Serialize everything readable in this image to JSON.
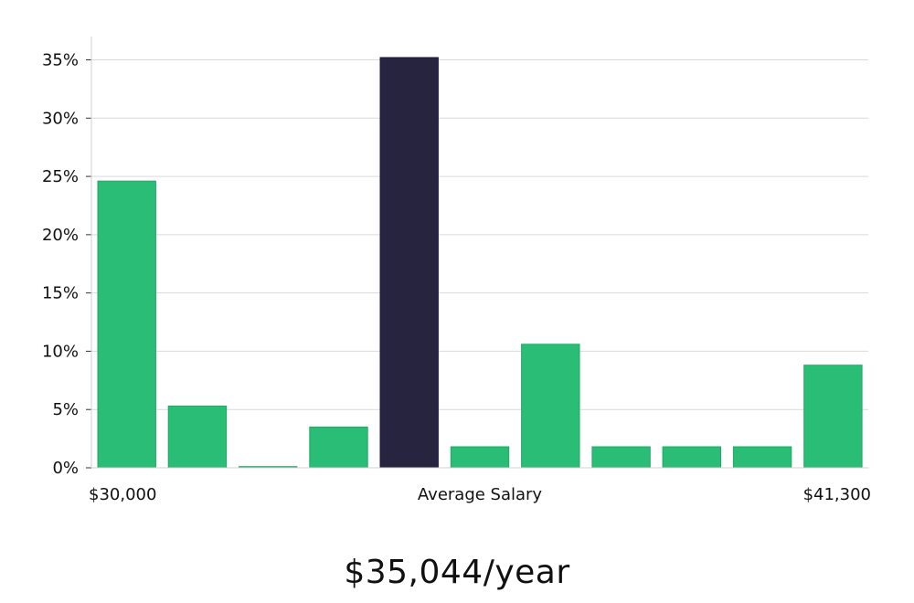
{
  "chart_data": {
    "type": "bar",
    "categories": [
      "$30,000",
      "",
      "",
      "",
      "",
      "",
      "",
      "",
      "",
      "",
      "$41,300"
    ],
    "values": [
      24.6,
      5.3,
      0.1,
      3.5,
      35.2,
      1.8,
      10.6,
      1.8,
      1.8,
      1.8,
      8.8
    ],
    "highlight_index": 4,
    "ylim": [
      0,
      37
    ],
    "yticks": [
      0,
      5,
      10,
      15,
      20,
      25,
      30,
      35
    ],
    "ytick_labels": [
      "0%",
      "5%",
      "10%",
      "15%",
      "20%",
      "25%",
      "30%",
      "35%"
    ],
    "x_labels": {
      "left": "$30,000",
      "center": "Average Salary",
      "right": "$41,300"
    },
    "colors": {
      "bar": "#29bd76",
      "highlight": "#27243f",
      "grid": "#d9d9d9",
      "axis": "#d0d0d0"
    },
    "grid": true
  },
  "caption": "$35,044/year"
}
